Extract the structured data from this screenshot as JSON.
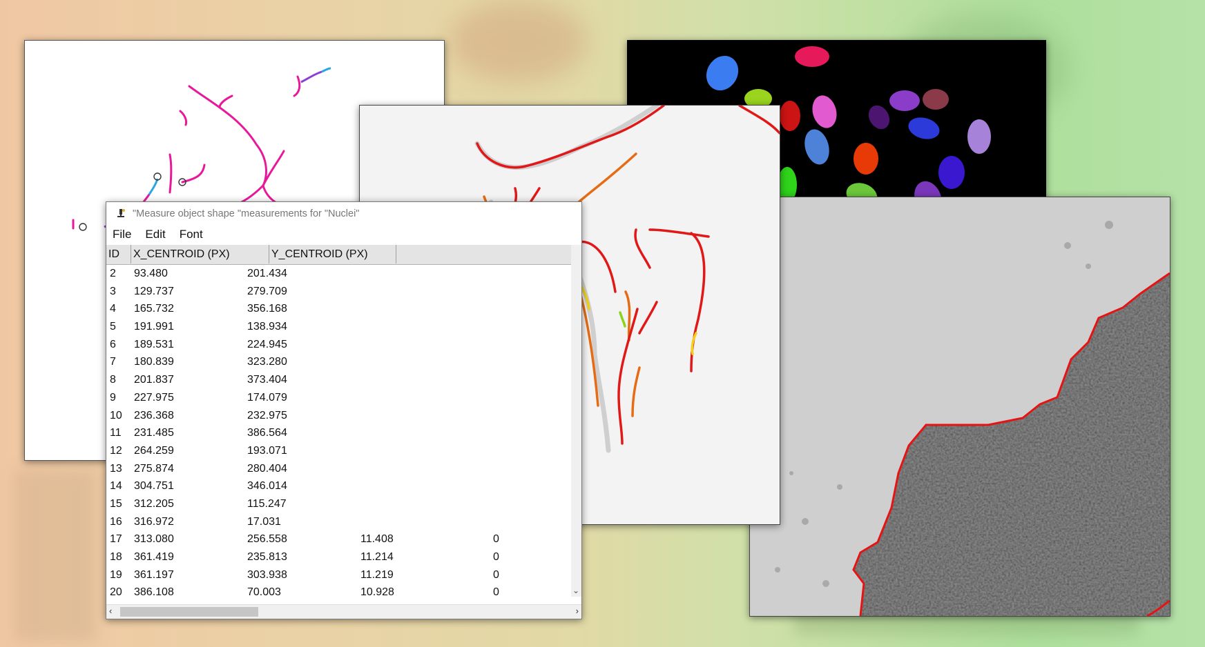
{
  "window": {
    "title": "\"Measure object shape \"measurements for \"Nuclei\"",
    "menu": [
      "File",
      "Edit",
      "Font"
    ]
  },
  "table": {
    "columns": [
      "ID",
      "X_CENTROID (PX)",
      "Y_CENTROID (PX)"
    ],
    "rows": [
      [
        "2",
        "93.480",
        "201.434",
        "",
        ""
      ],
      [
        "3",
        "129.737",
        "279.709",
        "",
        ""
      ],
      [
        "4",
        "165.732",
        "356.168",
        "",
        ""
      ],
      [
        "5",
        "191.991",
        "138.934",
        "",
        ""
      ],
      [
        "6",
        "189.531",
        "224.945",
        "",
        ""
      ],
      [
        "7",
        "180.839",
        "323.280",
        "",
        ""
      ],
      [
        "8",
        "201.837",
        "373.404",
        "",
        ""
      ],
      [
        "9",
        "227.975",
        "174.079",
        "",
        ""
      ],
      [
        "10",
        "236.368",
        "232.975",
        "",
        ""
      ],
      [
        "11",
        "231.485",
        "386.564",
        "",
        ""
      ],
      [
        "12",
        "264.259",
        "193.071",
        "",
        ""
      ],
      [
        "13",
        "275.874",
        "280.404",
        "",
        ""
      ],
      [
        "14",
        "304.751",
        "346.014",
        "",
        ""
      ],
      [
        "15",
        "312.205",
        "115.247",
        "",
        ""
      ],
      [
        "16",
        "316.972",
        "17.031",
        "",
        ""
      ],
      [
        "17",
        "313.080",
        "256.558",
        "11.408",
        "0"
      ],
      [
        "18",
        "361.419",
        "235.813",
        "11.214",
        "0"
      ],
      [
        "19",
        "361.197",
        "303.938",
        "11.219",
        "0"
      ],
      [
        "20",
        "386.108",
        "70.003",
        "10.928",
        "0"
      ]
    ]
  },
  "icons": {
    "window": "microscope-icon",
    "scroll_down": "chevron-down-icon",
    "scroll_left": "chevron-left-icon",
    "scroll_right": "chevron-right-icon"
  },
  "colors": {
    "skeleton_magenta": "#e8189a",
    "skeleton_blue": "#2aa7e0",
    "filament_red": "#e01818",
    "filament_yellow": "#f0d21a",
    "boundary_red": "#e41414"
  }
}
